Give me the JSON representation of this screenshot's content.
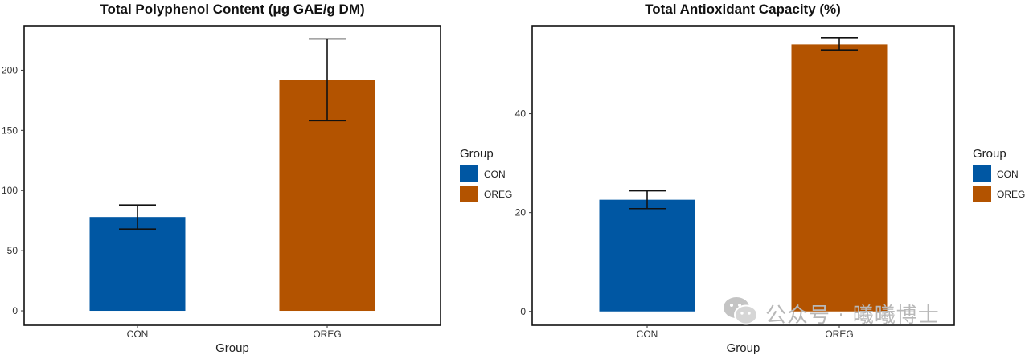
{
  "colors": {
    "CON": "#0057A3",
    "OREG": "#B35300",
    "frame": "#111111",
    "errorbar": "#111111"
  },
  "watermark": {
    "text": "公众号 · 曦曦博士",
    "icon": "wechat-icon"
  },
  "chart_data": [
    {
      "type": "bar",
      "title": "Total Polyphenol Content (μg GAE/g DM)",
      "xlabel": "Group",
      "ylabel": "",
      "categories": [
        "CON",
        "OREG"
      ],
      "values": [
        78,
        192
      ],
      "error_low": [
        68,
        158
      ],
      "error_high": [
        88,
        226
      ],
      "ylim": [
        -12,
        237
      ],
      "yticks": [
        0,
        50,
        100,
        150,
        200
      ],
      "grid": false,
      "legend": {
        "title": "Group",
        "position": "right",
        "entries": [
          "CON",
          "OREG"
        ]
      }
    },
    {
      "type": "bar",
      "title": "Total Antioxidant Capacity (%)",
      "xlabel": "Group",
      "ylabel": "",
      "categories": [
        "CON",
        "OREG"
      ],
      "values": [
        22.6,
        54.0
      ],
      "error_low": [
        20.8,
        52.9
      ],
      "error_high": [
        24.4,
        55.4
      ],
      "ylim": [
        -2.8,
        57.8
      ],
      "yticks": [
        0,
        20,
        40
      ],
      "grid": false,
      "legend": {
        "title": "Group",
        "position": "right",
        "entries": [
          "CON",
          "OREG"
        ]
      }
    }
  ]
}
